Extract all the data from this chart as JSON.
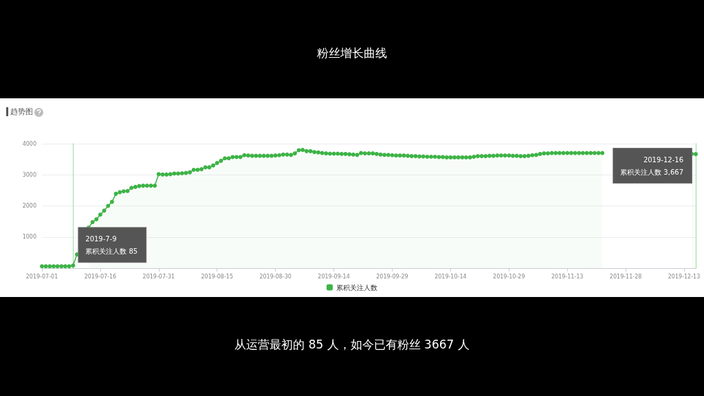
{
  "chart_data": {
    "type": "area",
    "title": "粉丝增长曲线",
    "subtitle": "趋势图",
    "x": [
      "2019-07-01",
      "2019-07-02",
      "2019-07-03",
      "2019-07-04",
      "2019-07-05",
      "2019-07-06",
      "2019-07-07",
      "2019-07-08",
      "2019-07-09",
      "2019-07-10",
      "2019-07-11",
      "2019-07-12",
      "2019-07-13",
      "2019-07-14",
      "2019-07-15",
      "2019-07-16",
      "2019-07-17",
      "2019-07-18",
      "2019-07-19",
      "2019-07-20",
      "2019-07-21",
      "2019-07-22",
      "2019-07-23",
      "2019-07-24",
      "2019-07-25",
      "2019-07-26",
      "2019-07-27",
      "2019-07-28",
      "2019-07-29",
      "2019-07-30",
      "2019-07-31",
      "2019-08-01",
      "2019-08-02",
      "2019-08-03",
      "2019-08-04",
      "2019-08-05",
      "2019-08-06",
      "2019-08-07",
      "2019-08-08",
      "2019-08-09",
      "2019-08-10",
      "2019-08-11",
      "2019-08-12",
      "2019-08-13",
      "2019-08-14",
      "2019-08-15",
      "2019-08-16",
      "2019-08-17",
      "2019-08-18",
      "2019-08-19",
      "2019-08-20",
      "2019-08-21",
      "2019-08-22",
      "2019-08-23",
      "2019-08-24",
      "2019-08-25",
      "2019-08-26",
      "2019-08-27",
      "2019-08-28",
      "2019-08-29",
      "2019-08-30",
      "2019-08-31",
      "2019-09-01",
      "2019-09-02",
      "2019-09-03",
      "2019-09-04",
      "2019-09-05",
      "2019-09-06",
      "2019-09-07",
      "2019-09-08",
      "2019-09-09",
      "2019-09-10",
      "2019-09-11",
      "2019-09-12",
      "2019-09-13",
      "2019-09-14",
      "2019-09-15",
      "2019-09-16",
      "2019-09-17",
      "2019-09-18",
      "2019-09-19",
      "2019-09-20",
      "2019-09-21",
      "2019-09-22",
      "2019-09-23",
      "2019-09-24",
      "2019-09-25",
      "2019-09-26",
      "2019-09-27",
      "2019-09-28",
      "2019-09-29",
      "2019-09-30",
      "2019-10-01",
      "2019-10-02",
      "2019-10-03",
      "2019-10-04",
      "2019-10-05",
      "2019-10-06",
      "2019-10-07",
      "2019-10-08",
      "2019-10-09",
      "2019-10-10",
      "2019-10-11",
      "2019-10-12",
      "2019-10-13",
      "2019-10-14",
      "2019-10-15",
      "2019-10-16",
      "2019-10-17",
      "2019-10-18",
      "2019-10-19",
      "2019-10-20",
      "2019-10-21",
      "2019-10-22",
      "2019-10-23",
      "2019-10-24",
      "2019-10-25",
      "2019-10-26",
      "2019-10-27",
      "2019-10-28",
      "2019-10-29",
      "2019-10-30",
      "2019-10-31",
      "2019-11-01",
      "2019-11-02",
      "2019-11-03",
      "2019-11-04",
      "2019-11-05",
      "2019-11-06",
      "2019-11-07",
      "2019-11-08",
      "2019-11-09",
      "2019-11-10",
      "2019-11-11",
      "2019-11-12",
      "2019-11-13",
      "2019-11-14",
      "2019-11-15",
      "2019-11-16",
      "2019-11-17",
      "2019-11-18",
      "2019-11-19",
      "2019-11-20",
      "2019-11-21",
      "2019-11-22",
      "2019-11-23",
      "2019-11-24",
      "2019-11-25",
      "2019-11-26",
      "2019-11-27",
      "2019-11-28",
      "2019-11-29",
      "2019-11-30",
      "2019-12-01",
      "2019-12-02",
      "2019-12-03",
      "2019-12-04",
      "2019-12-05",
      "2019-12-06",
      "2019-12-07",
      "2019-12-08",
      "2019-12-09",
      "2019-12-10",
      "2019-12-11",
      "2019-12-12",
      "2019-12-13",
      "2019-12-14",
      "2019-12-15",
      "2019-12-16"
    ],
    "series": [
      {
        "name": "累积关注人数",
        "color": "#3db346",
        "values": [
          60,
          60,
          60,
          60,
          60,
          60,
          60,
          60,
          85,
          440,
          null,
          null,
          1300,
          1480,
          1570,
          1720,
          1850,
          2000,
          2130,
          2390,
          2440,
          2470,
          2480,
          2580,
          2610,
          2640,
          2650,
          2650,
          2650,
          2650,
          3020,
          3010,
          3010,
          3020,
          3040,
          3040,
          3050,
          3060,
          3080,
          3160,
          3160,
          3180,
          3240,
          3240,
          3300,
          3380,
          3450,
          3530,
          3530,
          3570,
          3570,
          3570,
          3630,
          3620,
          3610,
          3610,
          3610,
          3610,
          3610,
          3610,
          3620,
          3630,
          3650,
          3650,
          3640,
          3690,
          3790,
          3800,
          3760,
          3760,
          3730,
          3720,
          3700,
          3690,
          3680,
          3680,
          3680,
          3670,
          3670,
          3660,
          3650,
          3640,
          3700,
          3690,
          3690,
          3690,
          3670,
          3650,
          3640,
          3640,
          3630,
          3620,
          3620,
          3620,
          3610,
          3600,
          3600,
          3590,
          3590,
          3580,
          3580,
          3580,
          3570,
          3570,
          3560,
          3560,
          3560,
          3560,
          3560,
          3560,
          3560,
          3580,
          3600,
          3600,
          3600,
          3610,
          3610,
          3620,
          3620,
          3620,
          3620,
          3610,
          3610,
          3600,
          3600,
          3610,
          3630,
          3640,
          3670,
          3690,
          3690,
          3700,
          3700,
          3700,
          3700,
          3700,
          3700,
          3700,
          3700,
          3700,
          3700,
          3700,
          3700,
          3700,
          3700,
          null,
          null,
          null,
          null,
          null,
          null,
          null,
          null,
          null,
          null,
          null,
          null,
          null,
          null,
          null,
          null,
          null,
          null,
          null,
          null,
          null,
          null,
          3670,
          3667
        ]
      }
    ],
    "xlim": [
      "2019-07-01",
      "2019-12-16"
    ],
    "xticks": [
      "2019-07-01",
      "2019-07-16",
      "2019-07-31",
      "2019-08-15",
      "2019-08-30",
      "2019-09-14",
      "2019-09-29",
      "2019-10-14",
      "2019-10-29",
      "2019-11-13",
      "2019-11-28",
      "2019-12-13"
    ],
    "ylim": [
      0,
      4000
    ],
    "yticks": [
      {
        "value": 0,
        "label": null
      },
      1000,
      2000,
      3000,
      4000
    ],
    "grid": "y",
    "legend": "bottom",
    "marker": "circle",
    "line_style": "solid",
    "ref_lines": [
      {
        "axis": "x",
        "value": "2019-07-09",
        "color": "#3db346",
        "line_style": "dotted"
      },
      {
        "axis": "x",
        "value": "2019-12-16",
        "color": "#3db346",
        "line_style": "dotted"
      }
    ],
    "annotations": [
      {
        "text": "2019-7-9\n累积关注人数 85",
        "x": "2019-07-09",
        "y": 85
      },
      {
        "text": "2019-12-16\n累积关注人数 3,667",
        "x": "2019-12-16",
        "y": 3667
      },
      "从运营最初的 85 人，如今已有粉丝 3667 人"
    ]
  }
}
